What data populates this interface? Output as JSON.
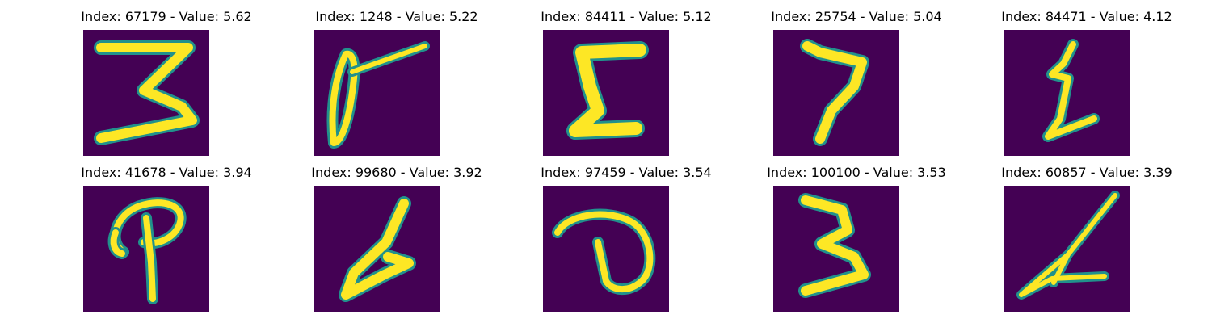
{
  "figure": {
    "background": "#ffffff",
    "image_background_color": "#440154",
    "stroke_colors": [
      "#fde725",
      "#35b779",
      "#21918c"
    ],
    "panels": [
      {
        "title": "Index: 67179 - Value: 5.62",
        "digit_icon": "digit-3-icon"
      },
      {
        "title": "Index: 1248 - Value: 5.22",
        "digit_icon": "digit-0-icon"
      },
      {
        "title": "Index: 84411 - Value: 5.12",
        "digit_icon": "digit-5-icon"
      },
      {
        "title": "Index: 25754 - Value: 5.04",
        "digit_icon": "digit-7-icon"
      },
      {
        "title": "Index: 84471 - Value: 4.12",
        "digit_icon": "digit-1-icon"
      },
      {
        "title": "Index: 41678 - Value: 3.94",
        "digit_icon": "digit-p-icon"
      },
      {
        "title": "Index: 99680 - Value: 3.92",
        "digit_icon": "digit-4-icon"
      },
      {
        "title": "Index: 97459 - Value: 3.54",
        "digit_icon": "digit-d-icon"
      },
      {
        "title": "Index: 100100 - Value: 3.53",
        "digit_icon": "digit-3-icon"
      },
      {
        "title": "Index: 60857 - Value: 3.39",
        "digit_icon": "digit-4-icon"
      }
    ]
  }
}
